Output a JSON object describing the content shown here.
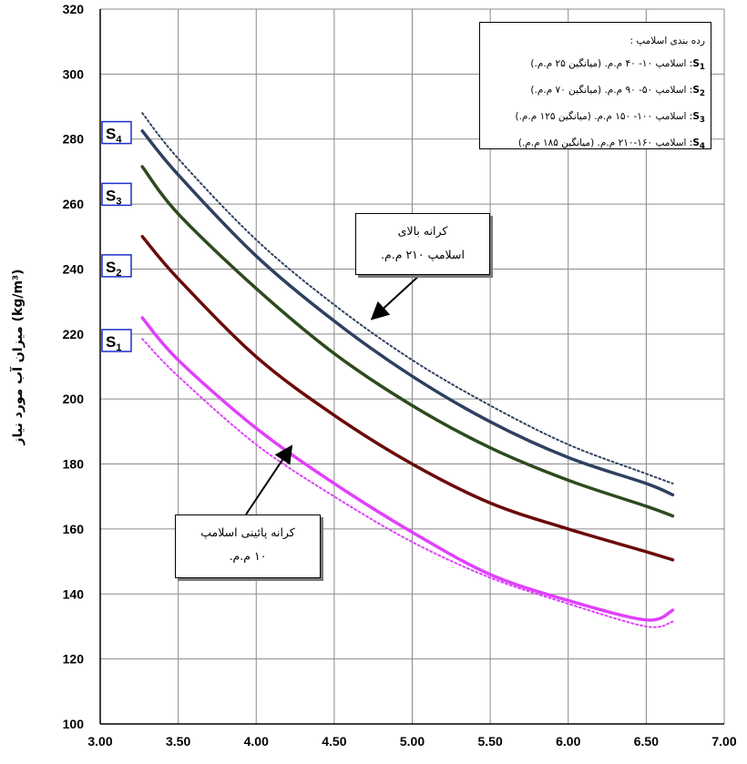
{
  "chart_data": {
    "type": "line",
    "ylabel": "میزان آب مورد نیاز (kg/m³)",
    "xlim": [
      3.0,
      7.0
    ],
    "ylim": [
      100,
      320
    ],
    "x_ticks": [
      "3.00",
      "3.50",
      "4.00",
      "4.50",
      "5.00",
      "5.50",
      "6.00",
      "6.50",
      "7.00"
    ],
    "y_ticks": [
      "100",
      "120",
      "140",
      "160",
      "180",
      "200",
      "220",
      "240",
      "260",
      "280",
      "300",
      "320"
    ],
    "grid": true,
    "x": [
      3.27,
      3.5,
      4.0,
      4.5,
      5.0,
      5.5,
      6.0,
      6.5,
      6.67
    ],
    "series": [
      {
        "name": "S1",
        "color": "#e040fb",
        "style": "solid",
        "values": [
          225,
          212,
          191,
          174,
          159,
          146,
          138,
          132,
          135
        ]
      },
      {
        "name": "S2",
        "color": "#6b0a0a",
        "style": "solid",
        "values": [
          250,
          237,
          213,
          195,
          180,
          168,
          160,
          153,
          150.5
        ]
      },
      {
        "name": "S3",
        "color": "#2e4a1e",
        "style": "solid",
        "values": [
          271.5,
          257,
          234,
          214,
          198,
          185,
          175,
          167,
          164
        ]
      },
      {
        "name": "S4",
        "color": "#2f4060",
        "style": "solid",
        "values": [
          282.5,
          269,
          244,
          224,
          207,
          193,
          182,
          174,
          170.5
        ]
      },
      {
        "name": "lower-bound",
        "color": "#e040fb",
        "style": "dotted",
        "values": [
          218.5,
          207,
          186,
          170,
          156,
          145,
          137,
          130,
          131.5
        ]
      },
      {
        "name": "upper-bound",
        "color": "#2f4060",
        "style": "dotted",
        "values": [
          288,
          274,
          249,
          229,
          212,
          198,
          186,
          177,
          174
        ]
      }
    ],
    "curve_labels": [
      {
        "key": "S",
        "sub": "4"
      },
      {
        "key": "S",
        "sub": "3"
      },
      {
        "key": "S",
        "sub": "2"
      },
      {
        "key": "S",
        "sub": "1"
      }
    ]
  },
  "legend": {
    "title": "رده بندی اسلامپ :",
    "items": [
      {
        "key": "S1",
        "text": ": اسلامپ ۱۰- ۴۰ م.م. (میانگین ۲۵ م.م.)"
      },
      {
        "key": "S2",
        "text": ": اسلامپ ۵۰- ۹۰ م.م. (میانگین ۷۰ م.م.)"
      },
      {
        "key": "S3",
        "text": ": اسلامپ ۱۰۰- ۱۵۰ م.م. (میانگین ۱۲۵ م.م.)"
      },
      {
        "key": "S4",
        "text": ": اسلامپ ۱۶۰-۲۱۰ م.م. (میانگین ۱۸۵ م.م.)"
      }
    ]
  },
  "annotations": {
    "upper": {
      "line1": "کرانه بالای",
      "line2": "اسلامپ ۲۱۰ م.م."
    },
    "lower": {
      "line1": "کرانه پائینی اسلامپ",
      "line2": "۱۰ م.م."
    }
  }
}
